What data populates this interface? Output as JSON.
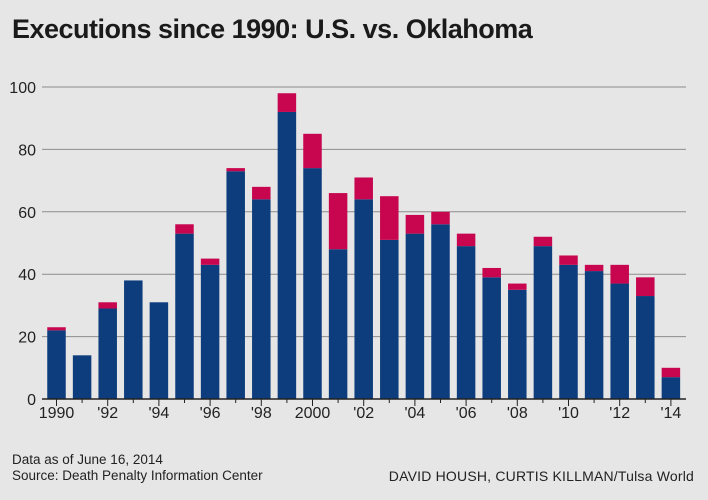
{
  "chart_data": {
    "type": "bar",
    "stacked": true,
    "title": "Executions since 1990: U.S. vs. Oklahoma",
    "categories": [
      "1990",
      "1991",
      "1992",
      "1993",
      "1994",
      "1995",
      "1996",
      "1997",
      "1998",
      "1999",
      "2000",
      "2001",
      "2002",
      "2003",
      "2004",
      "2005",
      "2006",
      "2007",
      "2008",
      "2009",
      "2010",
      "2011",
      "2012",
      "2013",
      "2014"
    ],
    "x_tick_labels": [
      "1990",
      "",
      "'92",
      "",
      "'94",
      "",
      "'96",
      "",
      "'98",
      "",
      "2000",
      "",
      "'02",
      "",
      "'04",
      "",
      "'06",
      "",
      "'08",
      "",
      "'10",
      "",
      "'12",
      "",
      "'14"
    ],
    "series": [
      {
        "color": "#0d3d7c",
        "values": [
          22,
          14,
          29,
          38,
          31,
          53,
          43,
          73,
          64,
          92,
          74,
          48,
          64,
          51,
          53,
          56,
          49,
          39,
          35,
          49,
          43,
          41,
          37,
          33,
          7
        ]
      },
      {
        "color": "#c7064f",
        "values": [
          1,
          0,
          2,
          0,
          0,
          3,
          2,
          1,
          4,
          6,
          11,
          18,
          7,
          14,
          6,
          4,
          4,
          3,
          2,
          3,
          3,
          2,
          6,
          6,
          3
        ]
      }
    ],
    "y_ticks": [
      "0",
      "20",
      "40",
      "60",
      "80",
      "100"
    ],
    "ylim": [
      0,
      100
    ],
    "grid": true
  },
  "footer": {
    "note": "Data as of June 16, 2014",
    "source": "Source: Death Penalty Information Center",
    "credit": "DAVID HOUSH, CURTIS KILLMAN/Tulsa World"
  }
}
